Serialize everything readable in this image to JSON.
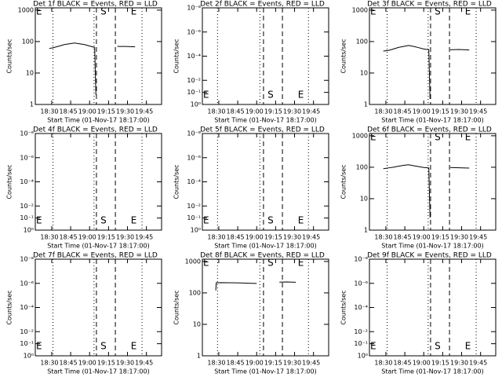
{
  "chart_data": [
    {
      "type": "line",
      "title": "Det 1f BLACK = Events, RED = LLD",
      "xlabel": "Start Time (01-Nov-17 18:17:00)",
      "ylabel": "Counts/sec",
      "log_y": true,
      "xlim": [
        1097,
        1197
      ],
      "ylim": [
        1,
        1180
      ],
      "xticks": [
        {
          "value": 1110,
          "label": "18:30"
        },
        {
          "value": 1125,
          "label": "18:45"
        },
        {
          "value": 1140,
          "label": "19:00"
        },
        {
          "value": 1155,
          "label": "19:15"
        },
        {
          "value": 1170,
          "label": "19:30"
        },
        {
          "value": 1185,
          "label": "19:45"
        }
      ],
      "yticks": [
        1,
        10,
        100,
        1000
      ],
      "dotted": [
        1111,
        1143.5,
        1181.5
      ],
      "dashed": [
        1145.4,
        1160.4
      ],
      "flags_pos": "top",
      "flags": [
        {
          "x": 1097,
          "label": "E"
        },
        {
          "x": 1148,
          "label": "S"
        },
        {
          "x": 1172,
          "label": "E"
        }
      ],
      "x": [
        1108,
        1112,
        1116,
        1120,
        1124,
        1128,
        1132,
        1136,
        1140,
        1144,
        1145,
        1153,
        1162,
        1168,
        1176
      ],
      "series": [
        {
          "color": "#000000",
          "values": [
            60,
            65,
            72,
            80,
            85,
            90,
            85,
            80,
            72,
            65,
            2,
            null,
            70,
            70,
            68
          ]
        }
      ]
    },
    {
      "type": "line",
      "title": "Det 2f BLACK = Events, RED = LLD",
      "xlabel": "Start Time (01-Nov-17 18:17:00)",
      "ylabel": "Counts/sec",
      "log_y": true,
      "xlim": [
        1097,
        1197
      ],
      "ylim": [
        1,
        1e-08
      ],
      "xticks": [
        {
          "value": 1110,
          "label": "18:30"
        },
        {
          "value": 1125,
          "label": "18:45"
        },
        {
          "value": 1140,
          "label": "19:00"
        },
        {
          "value": 1155,
          "label": "19:15"
        },
        {
          "value": 1170,
          "label": "19:30"
        },
        {
          "value": 1185,
          "label": "19:45"
        }
      ],
      "yticks": [
        {
          "value": 1e-08,
          "label": "10⁻⁸"
        },
        {
          "value": 1e-06,
          "label": "10⁻⁶"
        },
        {
          "value": 0.0001,
          "label": "10⁻⁴"
        },
        {
          "value": 0.01,
          "label": "10⁻²"
        },
        {
          "value": 0.1,
          "label": "10⁻¹"
        },
        {
          "value": 1,
          "label": "10⁰"
        }
      ],
      "dotted": [
        1109,
        1142.5,
        1181
      ],
      "dashed": [
        1145.4,
        1160.4
      ],
      "flags_pos": "bottom",
      "flags": [
        {
          "x": 1097,
          "label": "E"
        },
        {
          "x": 1148,
          "label": "S"
        },
        {
          "x": 1172,
          "label": "E"
        }
      ],
      "x": [],
      "series": []
    },
    {
      "type": "line",
      "title": "Det 3f BLACK = Events, RED = LLD",
      "xlabel": "Start Time (01-Nov-17 18:17:00)",
      "ylabel": "Counts/sec",
      "log_y": true,
      "xlim": [
        1097,
        1197
      ],
      "ylim": [
        1,
        1180
      ],
      "xticks": [
        {
          "value": 1110,
          "label": "18:30"
        },
        {
          "value": 1125,
          "label": "18:45"
        },
        {
          "value": 1140,
          "label": "19:00"
        },
        {
          "value": 1155,
          "label": "19:15"
        },
        {
          "value": 1170,
          "label": "19:30"
        },
        {
          "value": 1185,
          "label": "19:45"
        }
      ],
      "yticks": [
        1,
        10,
        100,
        1000
      ],
      "dotted": [
        1111,
        1143.5,
        1181.5
      ],
      "dashed": [
        1145.4,
        1160.4
      ],
      "flags_pos": "top",
      "flags": [
        {
          "x": 1097,
          "label": "E"
        },
        {
          "x": 1148,
          "label": "S"
        },
        {
          "x": 1172,
          "label": "E"
        }
      ],
      "x": [
        1108,
        1112,
        1116,
        1120,
        1124,
        1128,
        1132,
        1136,
        1140,
        1144,
        1145,
        1153,
        1161,
        1168,
        1176
      ],
      "series": [
        {
          "color": "#000000",
          "values": [
            50,
            52,
            58,
            65,
            70,
            75,
            70,
            64,
            58,
            55,
            1.5,
            null,
            55,
            56,
            54
          ]
        }
      ]
    },
    {
      "type": "line",
      "title": "Det 4f BLACK = Events, RED = LLD",
      "xlabel": "Start Time (01-Nov-17 18:17:00)",
      "ylabel": "Counts/sec",
      "log_y": true,
      "xlim": [
        1097,
        1197
      ],
      "ylim": [
        1,
        1e-08
      ],
      "xticks": [
        {
          "value": 1110,
          "label": "18:30"
        },
        {
          "value": 1125,
          "label": "18:45"
        },
        {
          "value": 1140,
          "label": "19:00"
        },
        {
          "value": 1155,
          "label": "19:15"
        },
        {
          "value": 1170,
          "label": "19:30"
        },
        {
          "value": 1185,
          "label": "19:45"
        }
      ],
      "yticks": [
        {
          "value": 1e-08,
          "label": "10⁻⁸"
        },
        {
          "value": 1e-06,
          "label": "10⁻⁶"
        },
        {
          "value": 0.0001,
          "label": "10⁻⁴"
        },
        {
          "value": 0.01,
          "label": "10⁻²"
        },
        {
          "value": 0.1,
          "label": "10⁻¹"
        },
        {
          "value": 1,
          "label": "10⁰"
        }
      ],
      "dotted": [
        1111,
        1143.5,
        1181.5
      ],
      "dashed": [
        1145.4,
        1160.4
      ],
      "flags_pos": "bottom",
      "flags": [
        {
          "x": 1097,
          "label": "E"
        },
        {
          "x": 1148,
          "label": "S"
        },
        {
          "x": 1172,
          "label": "E"
        }
      ],
      "x": [],
      "series": []
    },
    {
      "type": "line",
      "title": "Det 5f BLACK = Events, RED = LLD",
      "xlabel": "Start Time (01-Nov-17 18:17:00)",
      "ylabel": "Counts/sec",
      "log_y": true,
      "xlim": [
        1097,
        1197
      ],
      "ylim": [
        1,
        1e-08
      ],
      "xticks": [
        {
          "value": 1110,
          "label": "18:30"
        },
        {
          "value": 1125,
          "label": "18:45"
        },
        {
          "value": 1140,
          "label": "19:00"
        },
        {
          "value": 1155,
          "label": "19:15"
        },
        {
          "value": 1170,
          "label": "19:30"
        },
        {
          "value": 1185,
          "label": "19:45"
        }
      ],
      "yticks": [
        {
          "value": 1e-08,
          "label": "10⁻⁸"
        },
        {
          "value": 1e-06,
          "label": "10⁻⁶"
        },
        {
          "value": 0.0001,
          "label": "10⁻⁴"
        },
        {
          "value": 0.01,
          "label": "10⁻²"
        },
        {
          "value": 0.1,
          "label": "10⁻¹"
        },
        {
          "value": 1,
          "label": "10⁰"
        }
      ],
      "dotted": [
        1109,
        1142.5,
        1181
      ],
      "dashed": [
        1145.4,
        1160.4
      ],
      "flags_pos": "bottom",
      "flags": [
        {
          "x": 1097,
          "label": "E"
        },
        {
          "x": 1148,
          "label": "S"
        },
        {
          "x": 1172,
          "label": "E"
        }
      ],
      "x": [],
      "series": []
    },
    {
      "type": "line",
      "title": "Det 6f BLACK = Events, RED = LLD",
      "xlabel": "Start Time (01-Nov-17 18:17:00)",
      "ylabel": "Counts/sec",
      "log_y": true,
      "xlim": [
        1097,
        1197
      ],
      "ylim": [
        1,
        1180
      ],
      "xticks": [
        {
          "value": 1110,
          "label": "18:30"
        },
        {
          "value": 1125,
          "label": "18:45"
        },
        {
          "value": 1140,
          "label": "19:00"
        },
        {
          "value": 1155,
          "label": "19:15"
        },
        {
          "value": 1170,
          "label": "19:30"
        },
        {
          "value": 1185,
          "label": "19:45"
        }
      ],
      "yticks": [
        1,
        10,
        100,
        1000
      ],
      "dotted": [
        1111,
        1143.5,
        1181.5
      ],
      "dashed": [
        1145.4,
        1160.4
      ],
      "flags_pos": "top",
      "flags": [
        {
          "x": 1097,
          "label": "E"
        },
        {
          "x": 1148,
          "label": "S"
        },
        {
          "x": 1172,
          "label": "E"
        }
      ],
      "x": [
        1108,
        1112,
        1116,
        1120,
        1124,
        1128,
        1132,
        1136,
        1140,
        1144,
        1145,
        1153,
        1161,
        1168,
        1176
      ],
      "series": [
        {
          "color": "#000000",
          "values": [
            90,
            95,
            100,
            108,
            115,
            120,
            112,
            105,
            98,
            95,
            2.5,
            null,
            98,
            96,
            94
          ]
        }
      ]
    },
    {
      "type": "line",
      "title": "Det 7f BLACK = Events, RED = LLD",
      "xlabel": "Start Time (01-Nov-17 18:17:00)",
      "ylabel": "Counts/sec",
      "log_y": true,
      "xlim": [
        1097,
        1197
      ],
      "ylim": [
        1,
        1e-08
      ],
      "xticks": [
        {
          "value": 1110,
          "label": "18:30"
        },
        {
          "value": 1125,
          "label": "18:45"
        },
        {
          "value": 1140,
          "label": "19:00"
        },
        {
          "value": 1155,
          "label": "19:15"
        },
        {
          "value": 1170,
          "label": "19:30"
        },
        {
          "value": 1185,
          "label": "19:45"
        }
      ],
      "yticks": [
        {
          "value": 1e-08,
          "label": "10⁻⁸"
        },
        {
          "value": 1e-06,
          "label": "10⁻⁶"
        },
        {
          "value": 0.0001,
          "label": "10⁻⁴"
        },
        {
          "value": 0.01,
          "label": "10⁻²"
        },
        {
          "value": 0.1,
          "label": "10⁻¹"
        },
        {
          "value": 1,
          "label": "10⁰"
        }
      ],
      "dotted": [
        1111,
        1143.5,
        1181.5
      ],
      "dashed": [
        1145.4,
        1160.4
      ],
      "flags_pos": "bottom",
      "flags": [
        {
          "x": 1097,
          "label": "E"
        },
        {
          "x": 1148,
          "label": "S"
        },
        {
          "x": 1172,
          "label": "E"
        }
      ],
      "x": [],
      "series": []
    },
    {
      "type": "line",
      "title": "Det 8f BLACK = Events, RED = LLD",
      "xlabel": "Start Time (01-Nov-17 18:17:00)",
      "ylabel": "Counts/sec",
      "log_y": true,
      "xlim": [
        1097,
        1197
      ],
      "ylim": [
        1,
        1180
      ],
      "xticks": [
        {
          "value": 1110,
          "label": "18:30"
        },
        {
          "value": 1125,
          "label": "18:45"
        },
        {
          "value": 1140,
          "label": "19:00"
        },
        {
          "value": 1155,
          "label": "19:15"
        },
        {
          "value": 1170,
          "label": "19:30"
        },
        {
          "value": 1185,
          "label": "19:45"
        }
      ],
      "yticks": [
        1,
        10,
        100,
        1000
      ],
      "dotted": [
        1109,
        1142.5,
        1181
      ],
      "dashed": [
        1145.4,
        1160.4
      ],
      "flags_pos": "top",
      "flags": [
        {
          "x": 1097,
          "label": "E"
        },
        {
          "x": 1148,
          "label": "S"
        },
        {
          "x": 1172,
          "label": "E"
        }
      ],
      "x": [
        1107.6,
        1108,
        1112,
        1118,
        1124,
        1130,
        1136,
        1140,
        1150,
        1158,
        1164,
        1171
      ],
      "series": [
        {
          "color": "#000000",
          "values": [
            120,
            210,
            212,
            210,
            208,
            205,
            202,
            200,
            null,
            220,
            222,
            218
          ]
        }
      ]
    },
    {
      "type": "line",
      "title": "Det 9f BLACK = Events, RED = LLD",
      "xlabel": "Start Time (01-Nov-17 18:17:00)",
      "ylabel": "Counts/sec",
      "log_y": true,
      "xlim": [
        1097,
        1197
      ],
      "ylim": [
        1,
        1e-08
      ],
      "xticks": [
        {
          "value": 1110,
          "label": "18:30"
        },
        {
          "value": 1125,
          "label": "18:45"
        },
        {
          "value": 1140,
          "label": "19:00"
        },
        {
          "value": 1155,
          "label": "19:15"
        },
        {
          "value": 1170,
          "label": "19:30"
        },
        {
          "value": 1185,
          "label": "19:45"
        }
      ],
      "yticks": [
        {
          "value": 1e-08,
          "label": "10⁻⁸"
        },
        {
          "value": 1e-06,
          "label": "10⁻⁶"
        },
        {
          "value": 0.0001,
          "label": "10⁻⁴"
        },
        {
          "value": 0.01,
          "label": "10⁻²"
        },
        {
          "value": 0.1,
          "label": "10⁻¹"
        },
        {
          "value": 1,
          "label": "10⁰"
        }
      ],
      "dotted": [
        1111,
        1143.5,
        1181.5
      ],
      "dashed": [
        1145.4,
        1160.4
      ],
      "flags_pos": "bottom",
      "flags": [
        {
          "x": 1097,
          "label": "E"
        },
        {
          "x": 1148,
          "label": "S"
        },
        {
          "x": 1172,
          "label": "E"
        }
      ],
      "x": [],
      "series": []
    }
  ]
}
